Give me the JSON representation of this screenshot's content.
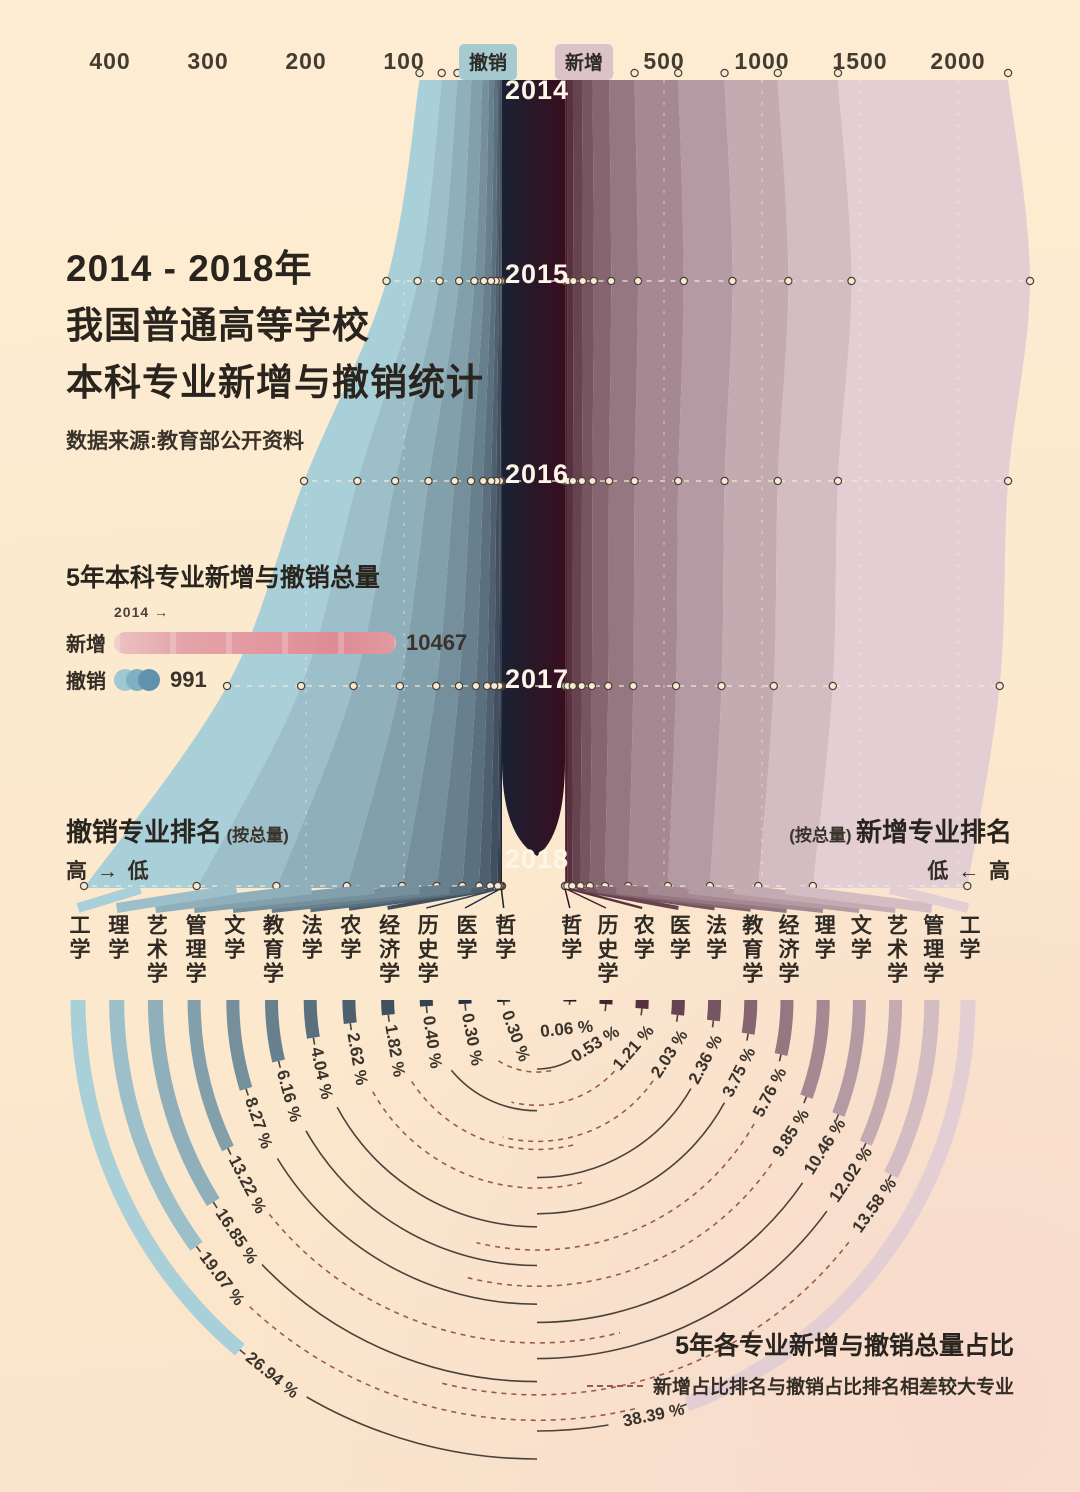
{
  "palette": {
    "background": "#fce9cd",
    "revoked_dark": "#1a2133",
    "revoked_light": "#a9cfd8",
    "new_dark": "#380e1e",
    "new_light": "#e3ced3",
    "badge_revoked_bg": "#a5cbd1",
    "badge_new_bg": "#dcc3c9",
    "grid_line": "#f6ecd9",
    "circle_fill": "#f7ead3",
    "circle_stroke": "#4a4038",
    "line_solid": "#4a423a",
    "line_dashed": "#9a5a4b",
    "text": "#332d26"
  },
  "icons": {
    "arrow_right": "→",
    "arrow_left": "←"
  },
  "axis": {
    "left_ticks": [
      "400",
      "300",
      "200",
      "100"
    ],
    "left_badge": "撤销",
    "right_badge": "新增",
    "right_ticks": [
      "500",
      "1000",
      "1500",
      "2000"
    ]
  },
  "title": {
    "line1": "2014 - 2018年",
    "line2": "我国普通高等学校",
    "line3": "本科专业新增与撤销统计",
    "source": "数据来源:教育部公开资料"
  },
  "totals_legend": {
    "heading": "5年本科专业新增与撤销总量",
    "year_marker": "2014",
    "new_label": "新增",
    "new_total": "10467",
    "revoked_label": "撤销",
    "revoked_total": "991"
  },
  "ranking": {
    "left_title": "撤销专业排名",
    "left_note": "(按总量)",
    "left_dir": "高 → 低",
    "right_note": "(按总量)",
    "right_title": "新增专业排名",
    "right_dir": "低 ← 高"
  },
  "share_legend": {
    "title": "5年各专业新增与撤销总量占比",
    "note": "新增占比排名与撤销占比排名相差较大专业"
  },
  "chart_data": [
    {
      "type": "area",
      "name": "2014-2018 本科专业新增与撤销双向流图",
      "years": [
        "2014",
        "2015",
        "2016",
        "2017",
        "2018"
      ],
      "series": [
        {
          "name": "撤销",
          "values_estimated": [
            75,
            105,
            180,
            250,
            380
          ],
          "total": 991
        },
        {
          "name": "新增",
          "values_estimated": [
            2120,
            2225,
            2120,
            2080,
            1925
          ],
          "total": 10467
        }
      ],
      "axis_ranges": {
        "revoked_ticks": [
          400,
          300,
          200,
          100
        ],
        "new_ticks": [
          500,
          1000,
          1500,
          2000
        ]
      },
      "grid": "dashed horizontal per year with node circles at category boundaries"
    },
    {
      "type": "arc-ranking",
      "name": "5年各专业新增与撤销总量占比(半圆弧)",
      "revoked_share_ranked": [
        {
          "category": "工学",
          "pct": 26.94
        },
        {
          "category": "理学",
          "pct": 19.07
        },
        {
          "category": "艺术学",
          "pct": 16.85
        },
        {
          "category": "管理学",
          "pct": 13.22
        },
        {
          "category": "文学",
          "pct": 8.27
        },
        {
          "category": "教育学",
          "pct": 6.16
        },
        {
          "category": "法学",
          "pct": 4.04
        },
        {
          "category": "农学",
          "pct": 2.62
        },
        {
          "category": "经济学",
          "pct": 1.82
        },
        {
          "category": "历史学",
          "pct": 0.4
        },
        {
          "category": "医学",
          "pct": 0.3
        },
        {
          "category": "哲学",
          "pct": 0.3
        }
      ],
      "new_share_ranked": [
        {
          "category": "工学",
          "pct": 38.39
        },
        {
          "category": "管理学",
          "pct": 13.58
        },
        {
          "category": "艺术学",
          "pct": 12.02
        },
        {
          "category": "文学",
          "pct": 10.46
        },
        {
          "category": "理学",
          "pct": 9.85
        },
        {
          "category": "经济学",
          "pct": 5.76
        },
        {
          "category": "教育学",
          "pct": 3.75
        },
        {
          "category": "法学",
          "pct": 2.36
        },
        {
          "category": "医学",
          "pct": 2.03
        },
        {
          "category": "农学",
          "pct": 1.21
        },
        {
          "category": "历史学",
          "pct": 0.53
        },
        {
          "category": "哲学",
          "pct": 0.06
        }
      ],
      "dashed_categories": [
        "理学",
        "管理学",
        "农学",
        "经济学",
        "医学"
      ]
    }
  ]
}
